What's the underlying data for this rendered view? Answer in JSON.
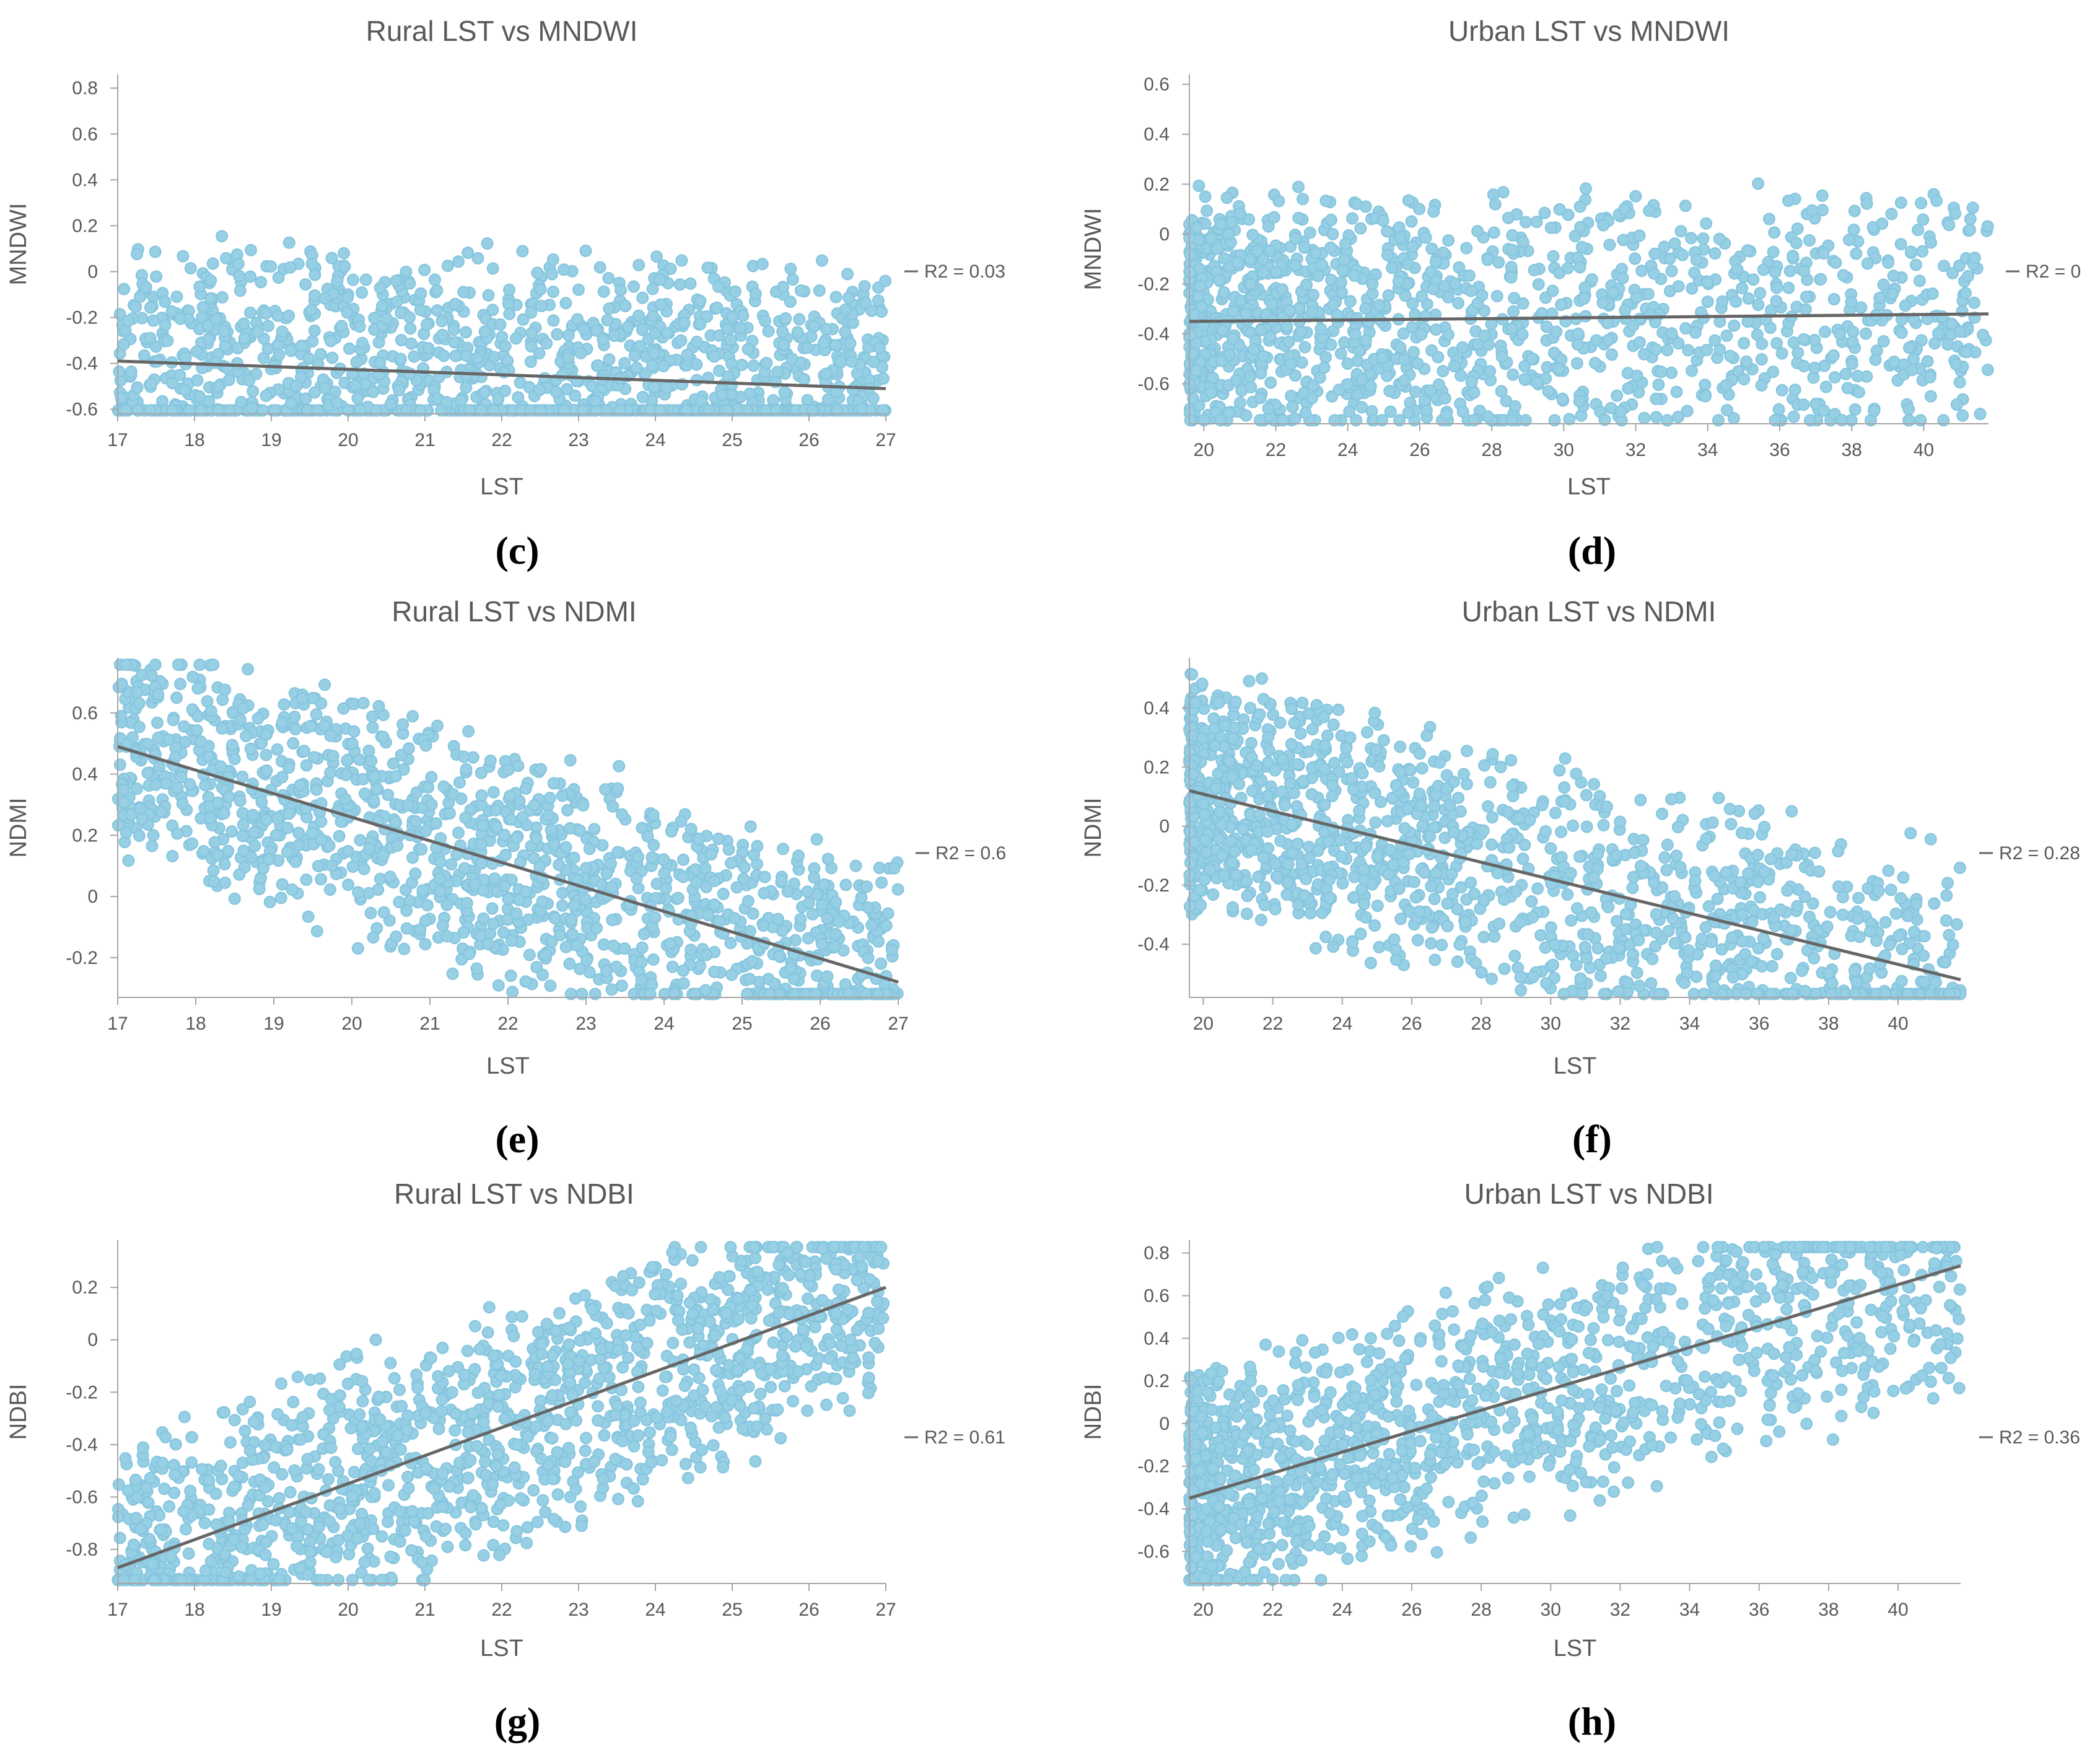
{
  "colors": {
    "point": "#92cde4",
    "point_edge": "#7fc2dc",
    "trend": "#666666",
    "axis": "#a6a6a6",
    "text": "#595959"
  },
  "chart_data": [
    {
      "type": "scatter",
      "title": "Rural LST vs MNDWI",
      "xlabel": "LST",
      "ylabel": "MNDWI",
      "xlim": [
        17,
        27
      ],
      "ylim": [
        -0.62,
        0.86
      ],
      "xticks": [
        "17",
        "18",
        "19",
        "20",
        "21",
        "22",
        "23",
        "24",
        "25",
        "26",
        "27"
      ],
      "yticks": [
        "-0.6",
        "-0.4",
        "-0.2",
        "0",
        "0.2",
        "0.4",
        "0.6",
        "0.8"
      ],
      "trendline": {
        "x": [
          17,
          27
        ],
        "y": [
          -0.39,
          -0.51
        ]
      },
      "legend": "R2 = 0.03",
      "caption": "(c)"
    },
    {
      "type": "scatter",
      "title": "Urban LST vs MNDWI",
      "xlabel": "LST",
      "ylabel": "MNDWI",
      "xlim": [
        19.6,
        41.8
      ],
      "ylim": [
        -0.76,
        0.64
      ],
      "xticks": [
        "20",
        "22",
        "24",
        "26",
        "28",
        "30",
        "32",
        "34",
        "36",
        "38",
        "40"
      ],
      "yticks": [
        "-0.6",
        "-0.4",
        "-0.2",
        "0",
        "0.2",
        "0.4",
        "0.6"
      ],
      "trendline": {
        "x": [
          19.6,
          41.8
        ],
        "y": [
          -0.35,
          -0.32
        ]
      },
      "legend": "R2 = 0",
      "caption": "(d)"
    },
    {
      "type": "scatter",
      "title": "Rural LST vs NDMI",
      "xlabel": "LST",
      "ylabel": "NDMI",
      "xlim": [
        17,
        27
      ],
      "ylim": [
        -0.33,
        0.78
      ],
      "xticks": [
        "17",
        "18",
        "19",
        "20",
        "21",
        "22",
        "23",
        "24",
        "25",
        "26",
        "27"
      ],
      "yticks": [
        "-0.2",
        "0",
        "0.2",
        "0.4",
        "0.6"
      ],
      "trendline": {
        "x": [
          17,
          27
        ],
        "y": [
          0.49,
          -0.28
        ]
      },
      "legend": "R2 = 0.6",
      "caption": "(e)"
    },
    {
      "type": "scatter",
      "title": "Urban LST vs NDMI",
      "xlabel": "LST",
      "ylabel": "NDMI",
      "xlim": [
        19.6,
        41.8
      ],
      "ylim": [
        -0.58,
        0.57
      ],
      "xticks": [
        "20",
        "22",
        "24",
        "26",
        "28",
        "30",
        "32",
        "34",
        "36",
        "38",
        "40"
      ],
      "yticks": [
        "-0.4",
        "-0.2",
        "0",
        "0.2",
        "0.4"
      ],
      "trendline": {
        "x": [
          19.6,
          41.8
        ],
        "y": [
          0.12,
          -0.52
        ]
      },
      "legend": "R2 = 0.28",
      "caption": "(f)"
    },
    {
      "type": "scatter",
      "title": "Rural LST vs NDBI",
      "xlabel": "LST",
      "ylabel": "NDBI",
      "xlim": [
        17,
        27
      ],
      "ylim": [
        -0.93,
        0.38
      ],
      "xticks": [
        "17",
        "18",
        "19",
        "20",
        "21",
        "22",
        "23",
        "24",
        "25",
        "26",
        "27"
      ],
      "yticks": [
        "-0.8",
        "-0.6",
        "-0.4",
        "-0.2",
        "0",
        "0.2"
      ],
      "trendline": {
        "x": [
          17,
          27
        ],
        "y": [
          -0.87,
          0.2
        ]
      },
      "legend": "R2 = 0.61",
      "caption": "(g)"
    },
    {
      "type": "scatter",
      "title": "Urban LST vs NDBI",
      "xlabel": "LST",
      "ylabel": "NDBI",
      "xlim": [
        19.6,
        41.8
      ],
      "ylim": [
        -0.75,
        0.86
      ],
      "xticks": [
        "20",
        "22",
        "24",
        "26",
        "28",
        "30",
        "32",
        "34",
        "36",
        "38",
        "40"
      ],
      "yticks": [
        "-0.6",
        "-0.4",
        "-0.2",
        "0",
        "0.2",
        "0.4",
        "0.6",
        "0.8"
      ],
      "trendline": {
        "x": [
          19.6,
          41.8
        ],
        "y": [
          -0.35,
          0.74
        ]
      },
      "legend": "R2 = 0.36",
      "caption": "(h)"
    }
  ]
}
